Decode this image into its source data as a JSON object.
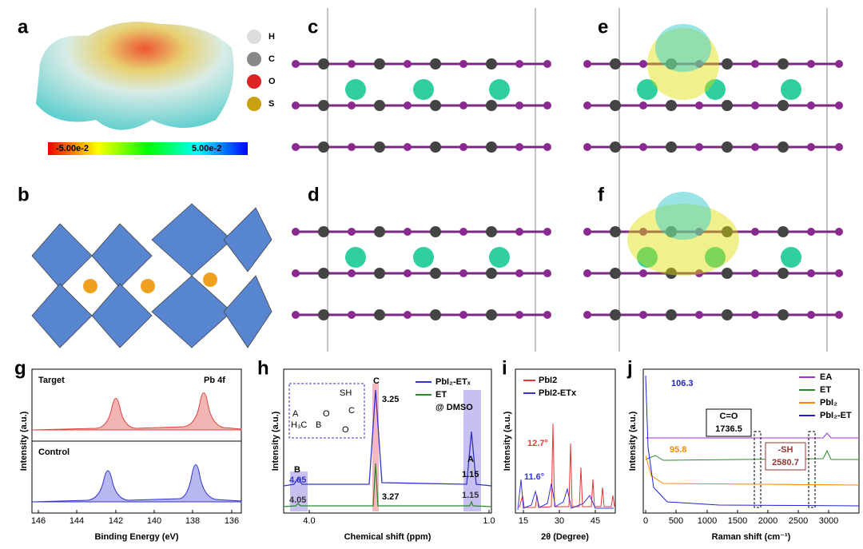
{
  "panels": {
    "a": {
      "label": "a",
      "elements": [
        "H",
        "C",
        "O",
        "S"
      ],
      "colorbar_min": "-5.00e-2",
      "colorbar_max": "5.00e-2"
    },
    "b": {
      "label": "b"
    },
    "c": {
      "label": "c"
    },
    "d": {
      "label": "d"
    },
    "e": {
      "label": "e"
    },
    "f": {
      "label": "f"
    },
    "g": {
      "label": "g",
      "top_label": "Target",
      "element_label": "Pb 4f",
      "bottom_label": "Control",
      "ylabel": "Intensity (a.u.)",
      "xlabel": "Binding Energy (eV)",
      "xticks": [
        "146",
        "144",
        "142",
        "140",
        "138",
        "136"
      ]
    },
    "h": {
      "label": "h",
      "legend": [
        "PbI₂-ETₓ",
        "ET",
        "@ DMSO"
      ],
      "ylabel": "Intensity (a.u.)",
      "xlabel": "Chemical shift (ppm)",
      "xticks": [
        "4.0",
        "1.0"
      ],
      "peak_labels": [
        "B",
        "C",
        "A"
      ],
      "shift_labels": [
        "4.05",
        "3.25",
        "1.15",
        "4.05",
        "3.27",
        "1.15"
      ],
      "inset": [
        "SH",
        "C",
        "A",
        "H₃C",
        "B",
        "O",
        "O"
      ]
    },
    "i": {
      "label": "i",
      "legend": [
        "PbI2",
        "PbI2-ETx"
      ],
      "ylabel": "Intensity (a.u.)",
      "xlabel": "2θ (Degree)",
      "xticks": [
        "15",
        "30",
        "45"
      ],
      "annotations": [
        "12.7°",
        "11.6°"
      ]
    },
    "j": {
      "label": "j",
      "legend": [
        "EA",
        "ET",
        "PbI₂",
        "PbI₂-ET"
      ],
      "ylabel": "Intensity (a.u.)",
      "xlabel": "Raman shift (cm⁻¹)",
      "xticks": [
        "0",
        "500",
        "1000",
        "1500",
        "2000",
        "2500",
        "3000"
      ],
      "annotations": [
        "106.3",
        "95.8",
        "C=O",
        "1736.5",
        "-SH",
        "2580.7"
      ]
    }
  }
}
